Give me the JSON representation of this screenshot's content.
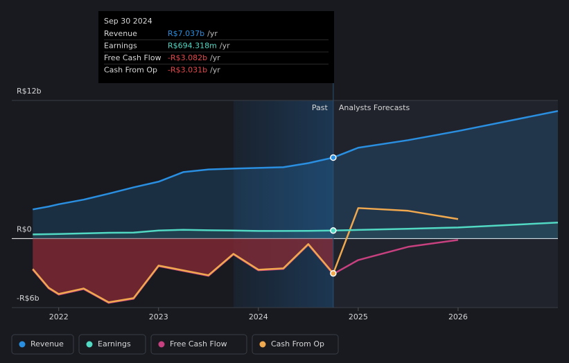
{
  "chart_data": {
    "type": "line",
    "x": [
      2021.74,
      2021.9,
      2022.0,
      2022.25,
      2022.5,
      2022.75,
      2023.0,
      2023.25,
      2023.5,
      2023.75,
      2024.0,
      2024.25,
      2024.5,
      2024.75,
      2025.0,
      2025.5,
      2026.0,
      2027.0
    ],
    "series": [
      {
        "name": "Revenue",
        "color": "#2a8fe0",
        "values": [
          2.53,
          2.78,
          2.98,
          3.38,
          3.9,
          4.45,
          4.94,
          5.78,
          6.0,
          6.08,
          6.14,
          6.2,
          6.55,
          7.037,
          7.89,
          8.55,
          9.34,
          11.08
        ]
      },
      {
        "name": "Earnings",
        "color": "#52d9c4",
        "values": [
          0.36,
          0.38,
          0.4,
          0.45,
          0.5,
          0.52,
          0.7,
          0.76,
          0.72,
          0.7,
          0.66,
          0.66,
          0.67,
          0.694,
          0.75,
          0.85,
          0.96,
          1.39
        ]
      },
      {
        "name": "Free Cash Flow",
        "color": "#c7407f",
        "values": [
          -2.7,
          -4.33,
          -4.87,
          -4.39,
          -5.59,
          -5.23,
          -2.4,
          -2.82,
          -3.24,
          -1.38,
          -2.76,
          -2.64,
          -0.53,
          -3.082,
          -1.87,
          -0.72,
          -0.12,
          null
        ]
      },
      {
        "name": "Cash From Op",
        "color": "#f0a94f",
        "values": [
          -2.65,
          -4.28,
          -4.82,
          -4.34,
          -5.54,
          -5.18,
          -2.35,
          -2.77,
          -3.19,
          -1.33,
          -2.71,
          -2.59,
          -0.48,
          -3.031,
          2.65,
          2.41,
          1.69,
          null
        ]
      }
    ],
    "xlim": [
      2021.53,
      2027.0
    ],
    "xticks": [
      2022,
      2023,
      2024,
      2025,
      2026
    ],
    "ylim": [
      -6,
      12
    ],
    "yticks": [
      {
        "value": 12,
        "label": "R$12b"
      },
      {
        "value": 0,
        "label": "R$0"
      },
      {
        "value": -6,
        "label": "-R$6b"
      }
    ],
    "past_label": "Past",
    "forecast_label": "Analysts Forecasts",
    "highlight_x": 2024.75,
    "tooltip": {
      "title": "Sep 30 2024",
      "values": [
        "R$7.037b",
        "R$694.318m",
        "-R$3.082b",
        "-R$3.031b"
      ],
      "unit": "/yr"
    }
  }
}
